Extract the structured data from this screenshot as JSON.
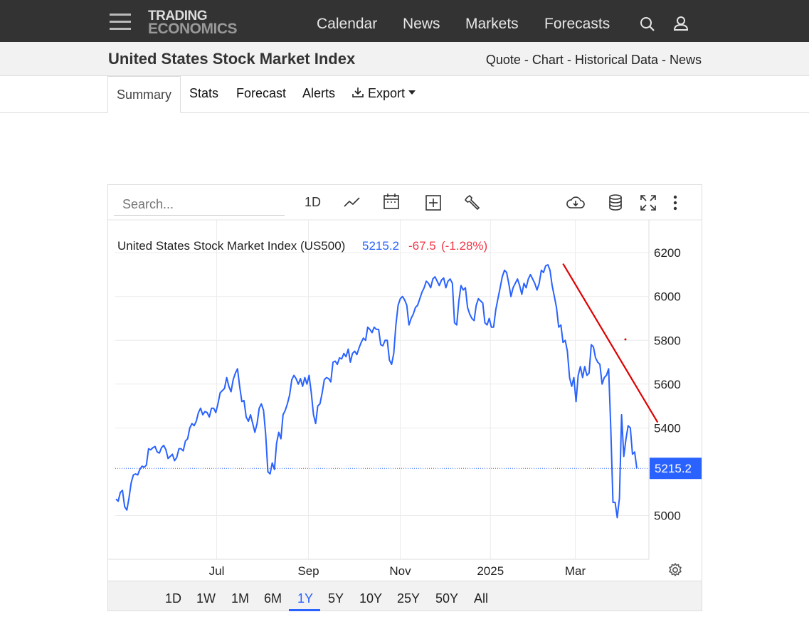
{
  "header": {
    "logo_line1": "TRADING",
    "logo_line2": "ECONOMICS",
    "nav": [
      "Calendar",
      "News",
      "Markets",
      "Forecasts"
    ]
  },
  "page": {
    "title": "United States Stock Market Index",
    "quicklinks": [
      "Quote",
      "Chart",
      "Historical Data",
      "News"
    ],
    "tabs": [
      "Summary",
      "Stats",
      "Forecast",
      "Alerts",
      "Export"
    ]
  },
  "chart_toolbar": {
    "search_placeholder": "Search...",
    "interval_label": "1D"
  },
  "chart_data": {
    "type": "line",
    "legend_name": "United States Stock Market Index (US500)",
    "last_value": "5215.2",
    "change": "-67.5",
    "change_pct": "(-1.28%)",
    "price_label": "5215.2",
    "x_tick_labels": [
      "Jul",
      "Sep",
      "Nov",
      "2025",
      "Mar"
    ],
    "y_tick_labels": [
      "6200",
      "6000",
      "5800",
      "5600",
      "5400",
      "5000"
    ],
    "ylim": [
      4800,
      6350
    ],
    "grid": true,
    "colors": {
      "series": "#2962ff",
      "trendline": "#e00000",
      "negative": "#f23645"
    },
    "series": [
      5075,
      5065,
      5105,
      5115,
      5040,
      5025,
      5080,
      5150,
      5185,
      5190,
      5185,
      5210,
      5225,
      5220,
      5230,
      5305,
      5300,
      5310,
      5315,
      5290,
      5285,
      5310,
      5320,
      5300,
      5260,
      5270,
      5280,
      5250,
      5265,
      5305,
      5305,
      5295,
      5340,
      5350,
      5400,
      5420,
      5410,
      5430,
      5470,
      5490,
      5460,
      5475,
      5470,
      5450,
      5490,
      5490,
      5470,
      5510,
      5560,
      5570,
      5580,
      5630,
      5590,
      5565,
      5620,
      5650,
      5670,
      5590,
      5520,
      5525,
      5450,
      5430,
      5460,
      5420,
      5380,
      5420,
      5490,
      5510,
      5480,
      5370,
      5200,
      5190,
      5240,
      5210,
      5330,
      5380,
      5350,
      5460,
      5480,
      5510,
      5550,
      5620,
      5640,
      5625,
      5600,
      5625,
      5590,
      5630,
      5600,
      5640,
      5560,
      5460,
      5420,
      5500,
      5510,
      5560,
      5620,
      5630,
      5625,
      5610,
      5700,
      5705,
      5690,
      5720,
      5715,
      5740,
      5725,
      5760,
      5700,
      5740,
      5750,
      5735,
      5765,
      5790,
      5810,
      5800,
      5860,
      5850,
      5835,
      5860,
      5850,
      5850,
      5780,
      5775,
      5800,
      5800,
      5710,
      5690,
      5740,
      5870,
      5960,
      5990,
      6000,
      5985,
      5960,
      5870,
      5900,
      5920,
      5950,
      5960,
      5990,
      6020,
      6040,
      6070,
      6060,
      6040,
      6080,
      6090,
      6070,
      6050,
      6075,
      6085,
      6040,
      6070,
      6080,
      6060,
      5880,
      5870,
      5980,
      6050,
      6030,
      6040,
      5950,
      5920,
      5900,
      5890,
      5960,
      5990,
      5980,
      5970,
      5880,
      5870,
      5900,
      5860,
      5860,
      5940,
      5990,
      6040,
      6090,
      6120,
      6110,
      6060,
      6000,
      6040,
      6060,
      6080,
      6050,
      6010,
      6060,
      6040,
      6080,
      6100,
      6080,
      6060,
      6030,
      6060,
      6120,
      6110,
      6140,
      6145,
      6120,
      6050,
      6000,
      5950,
      5860,
      5870,
      5790,
      5800,
      5750,
      5630,
      5590,
      5630,
      5520,
      5640,
      5680,
      5630,
      5680,
      5640,
      5650,
      5780,
      5770,
      5720,
      5700,
      5690,
      5600,
      5630,
      5640,
      5670,
      5400,
      5060,
      5060,
      4990,
      5080,
      5460,
      5270,
      5350,
      5410,
      5400,
      5280,
      5290,
      5215
    ],
    "trendline": {
      "start_index": 206,
      "start_value": 6150,
      "end_index": 247,
      "end_value": 5425
    }
  }
}
